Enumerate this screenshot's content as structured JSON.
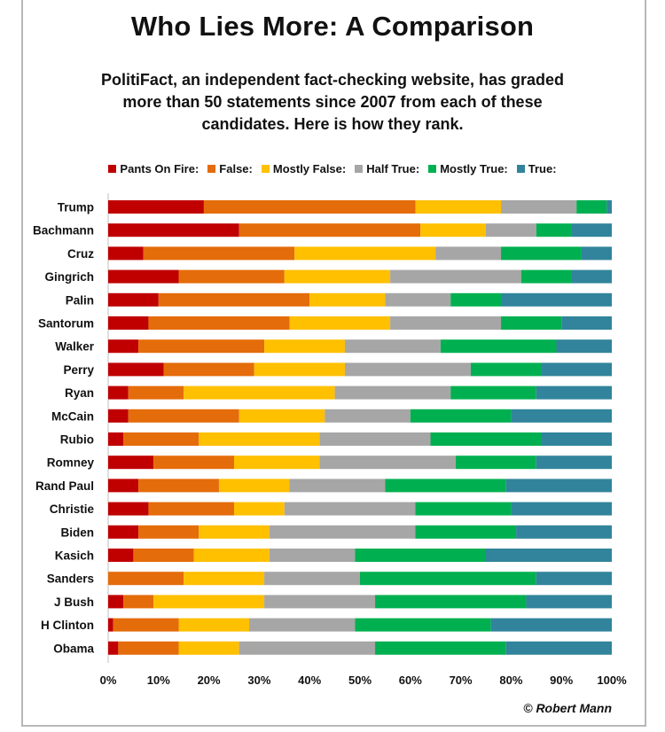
{
  "title": "Who Lies More: A Comparison",
  "subtitle": "PolitiFact,  an independent fact-checking website, has graded more than 50 statements since 2007 from each of these candidates. Here is how they rank.",
  "credit": "© Robert Mann",
  "chart_data": {
    "type": "bar",
    "orientation": "horizontal",
    "stacked": true,
    "title": "Who Lies More: A Comparison",
    "xlim": [
      0,
      100
    ],
    "x_ticks": [
      "0%",
      "10%",
      "20%",
      "30%",
      "40%",
      "50%",
      "60%",
      "70%",
      "80%",
      "90%",
      "100%"
    ],
    "legend_position": "top",
    "categories": [
      "Trump",
      "Bachmann",
      "Cruz",
      "Gingrich",
      "Palin",
      "Santorum",
      "Walker",
      "Perry",
      "Ryan",
      "McCain",
      "Rubio",
      "Romney",
      "Rand Paul",
      "Christie",
      "Biden",
      "Kasich",
      "Sanders",
      "J Bush",
      "H Clinton",
      "Obama"
    ],
    "series": [
      {
        "name": "Pants On Fire:",
        "color": "#c00000",
        "values": [
          19,
          26,
          7,
          14,
          10,
          8,
          6,
          11,
          4,
          4,
          3,
          9,
          6,
          8,
          6,
          5,
          0,
          3,
          1,
          2
        ]
      },
      {
        "name": "False:",
        "color": "#e46c0a",
        "values": [
          42,
          36,
          30,
          21,
          30,
          28,
          25,
          18,
          11,
          22,
          15,
          16,
          16,
          17,
          12,
          12,
          15,
          6,
          13,
          12
        ]
      },
      {
        "name": "Mostly False:",
        "color": "#ffc000",
        "values": [
          17,
          13,
          28,
          21,
          15,
          20,
          16,
          18,
          30,
          17,
          24,
          17,
          14,
          10,
          14,
          15,
          16,
          22,
          14,
          12
        ]
      },
      {
        "name": "Half True:",
        "color": "#a6a6a6",
        "values": [
          15,
          10,
          13,
          26,
          13,
          22,
          19,
          25,
          23,
          17,
          22,
          27,
          19,
          26,
          29,
          17,
          19,
          22,
          21,
          27
        ]
      },
      {
        "name": "Mostly True:",
        "color": "#00b050",
        "values": [
          6,
          7,
          16,
          10,
          10,
          12,
          23,
          14,
          17,
          20,
          22,
          16,
          24,
          19,
          20,
          26,
          35,
          30,
          27,
          26
        ]
      },
      {
        "name": "True:",
        "color": "#31849b",
        "values": [
          1,
          8,
          6,
          8,
          22,
          10,
          11,
          14,
          15,
          20,
          14,
          15,
          21,
          20,
          19,
          25,
          15,
          17,
          24,
          21
        ]
      }
    ]
  }
}
